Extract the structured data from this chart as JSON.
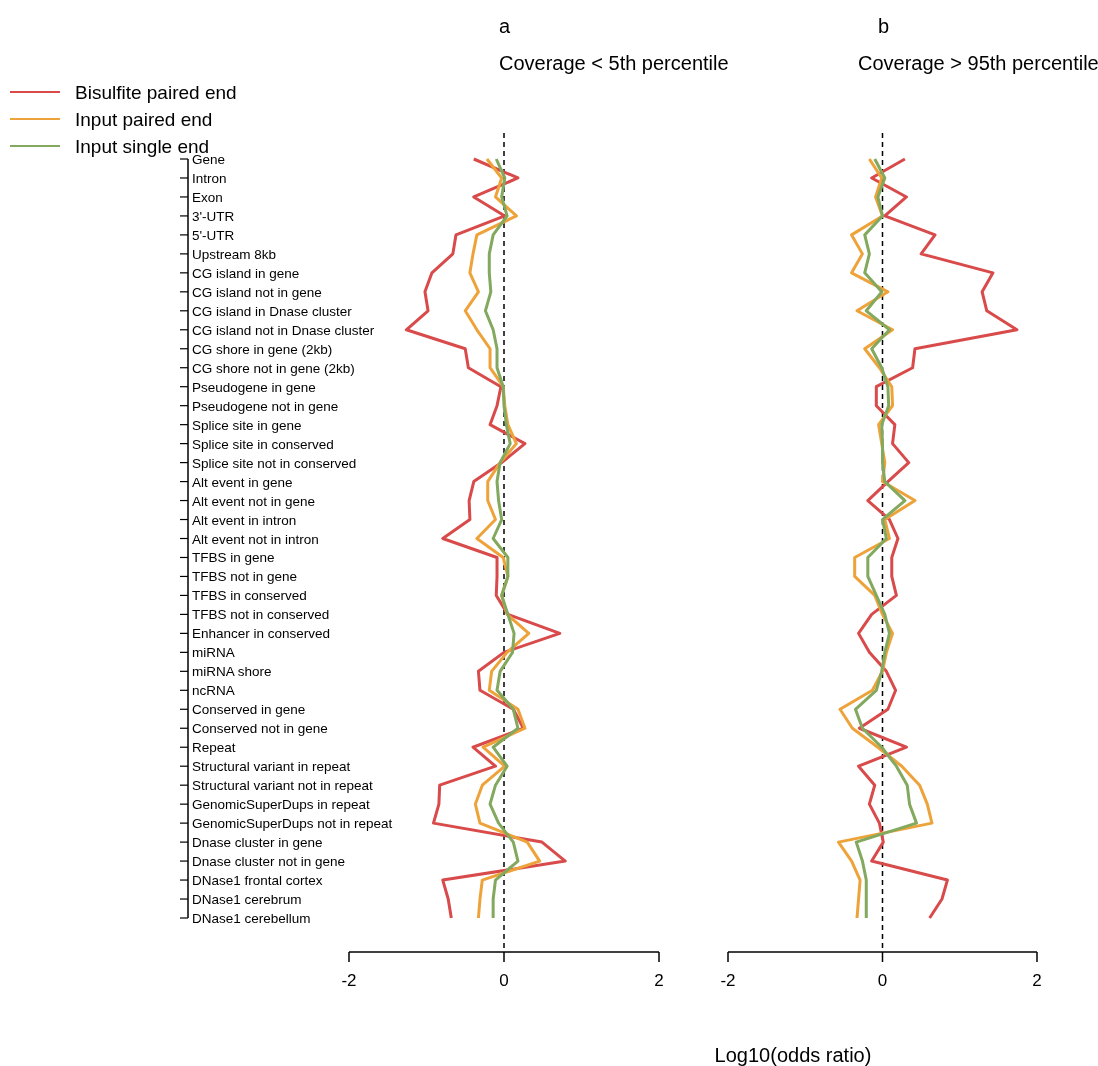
{
  "chart_data": [
    {
      "type": "line",
      "orientation": "horizontal",
      "title": "a",
      "subtitle": "Coverage < 5th percentile",
      "legend": "top left",
      "categories": [
        "Gene",
        "Intron",
        "Exon",
        "3'-UTR",
        "5'-UTR",
        "Upstream 8kb",
        "CG island in gene",
        "CG island not in gene",
        "CG island in Dnase cluster",
        "CG island not in Dnase cluster",
        "CG shore in gene (2kb)",
        "CG shore not in gene (2kb)",
        "Pseudogene in gene",
        "Pseudogene not in gene",
        "Splice site in gene",
        "Splice site in conserved",
        "Splice site not in conserved",
        "Alt event in gene",
        "Alt event not in gene",
        "Alt event in intron",
        "Alt event not in intron",
        "TFBS in gene",
        "TFBS not in gene",
        "TFBS in conserved",
        "TFBS not in conserved",
        "Enhancer in conserved",
        "miRNA",
        "miRNA shore",
        "ncRNA",
        "Conserved in gene",
        "Conserved not in gene",
        "Repeat",
        "Structural variant in repeat",
        "Structural variant not in repeat",
        "GenomicSuperDups in repeat",
        "GenomicSuperDups not in repeat",
        "Dnase cluster in gene",
        "Dnase cluster not in gene",
        "DNase1 frontal cortex",
        "DNase1 cerebrum",
        "DNase1 cerebellum"
      ],
      "xlim": [
        -2,
        2
      ],
      "xticks": [
        -2,
        0,
        2
      ],
      "ref_lines": [
        {
          "axis": "x",
          "value": 0,
          "line_style": "dashed",
          "color": "#000000"
        }
      ],
      "series": [
        {
          "name": "Bisulfite paired end",
          "color": "#d94a4a",
          "values": [
            -0.39,
            0.18,
            -0.39,
            0.01,
            -0.62,
            -0.66,
            -0.93,
            -1.02,
            -0.98,
            -1.26,
            -0.5,
            -0.46,
            -0.04,
            -0.09,
            -0.18,
            0.27,
            -0.03,
            -0.39,
            -0.45,
            -0.44,
            -0.79,
            -0.09,
            -0.09,
            -0.1,
            0.05,
            0.72,
            0.0,
            -0.33,
            -0.31,
            0.12,
            0.25,
            -0.4,
            -0.11,
            -0.83,
            -0.84,
            -0.91,
            0.49,
            0.79,
            -0.79,
            -0.72,
            -0.68
          ]
        },
        {
          "name": "Input paired end",
          "color": "#eea33a",
          "values": [
            -0.22,
            -0.03,
            -0.11,
            0.16,
            -0.35,
            -0.4,
            -0.44,
            -0.33,
            -0.5,
            -0.35,
            -0.18,
            -0.18,
            -0.01,
            0.01,
            0.05,
            0.16,
            -0.05,
            -0.21,
            -0.21,
            -0.11,
            -0.35,
            -0.01,
            0.05,
            -0.03,
            0.04,
            0.32,
            0.04,
            -0.16,
            -0.19,
            0.18,
            0.27,
            -0.27,
            0.01,
            -0.28,
            -0.37,
            -0.31,
            0.3,
            0.46,
            -0.28,
            -0.31,
            -0.33
          ]
        },
        {
          "name": "Input single end",
          "color": "#82a95e",
          "values": [
            -0.1,
            0.01,
            -0.03,
            0.04,
            -0.14,
            -0.19,
            -0.19,
            -0.17,
            -0.24,
            -0.14,
            -0.09,
            -0.09,
            -0.01,
            0.0,
            0.03,
            0.08,
            -0.05,
            -0.09,
            -0.07,
            -0.03,
            -0.14,
            0.05,
            0.05,
            -0.03,
            0.05,
            0.13,
            0.11,
            -0.05,
            -0.09,
            0.12,
            0.18,
            -0.14,
            0.04,
            -0.11,
            -0.18,
            -0.07,
            0.12,
            0.18,
            -0.11,
            -0.14,
            -0.14
          ]
        }
      ]
    },
    {
      "type": "line",
      "orientation": "horizontal",
      "title": "b",
      "subtitle": "Coverage > 95th percentile",
      "xlabel": "Log10(odds ratio)",
      "xlim": [
        -2,
        2
      ],
      "xticks": [
        -2,
        0,
        2
      ],
      "ref_lines": [
        {
          "axis": "x",
          "value": 0,
          "line_style": "dashed",
          "color": "#000000"
        }
      ],
      "series": [
        {
          "color": "#d94a4a",
          "values": [
            0.29,
            -0.14,
            0.31,
            0.03,
            0.68,
            0.5,
            1.43,
            1.29,
            1.35,
            1.74,
            0.42,
            0.39,
            -0.08,
            -0.08,
            0.16,
            0.13,
            0.34,
            0.07,
            -0.19,
            0.09,
            0.2,
            0.12,
            0.12,
            0.18,
            -0.14,
            -0.31,
            -0.17,
            0.05,
            0.17,
            0.07,
            -0.3,
            0.31,
            -0.31,
            -0.1,
            -0.17,
            -0.04,
            0.01,
            -0.14,
            0.84,
            0.77,
            0.61
          ]
        },
        {
          "color": "#eea33a",
          "values": [
            -0.17,
            -0.01,
            -0.09,
            0.0,
            -0.4,
            -0.26,
            -0.4,
            0.07,
            -0.33,
            0.13,
            -0.23,
            -0.04,
            0.12,
            0.13,
            -0.05,
            -0.01,
            0.03,
            0.0,
            0.42,
            0.03,
            0.09,
            -0.36,
            -0.36,
            -0.1,
            0.0,
            0.13,
            0.05,
            0.0,
            -0.13,
            -0.55,
            -0.39,
            -0.06,
            0.25,
            0.48,
            0.58,
            0.64,
            -0.57,
            -0.4,
            -0.29,
            -0.31,
            -0.33
          ]
        },
        {
          "color": "#82a95e",
          "values": [
            -0.1,
            0.03,
            -0.06,
            0.0,
            -0.23,
            -0.17,
            -0.23,
            -0.01,
            -0.21,
            0.09,
            -0.14,
            -0.01,
            0.07,
            0.08,
            -0.01,
            0.0,
            0.0,
            0.03,
            0.29,
            0.0,
            0.05,
            -0.19,
            -0.19,
            -0.08,
            0.03,
            0.09,
            0.03,
            -0.01,
            -0.08,
            -0.35,
            -0.26,
            -0.01,
            0.18,
            0.32,
            0.35,
            0.44,
            -0.34,
            -0.26,
            -0.21,
            -0.21,
            -0.21
          ]
        }
      ]
    }
  ]
}
